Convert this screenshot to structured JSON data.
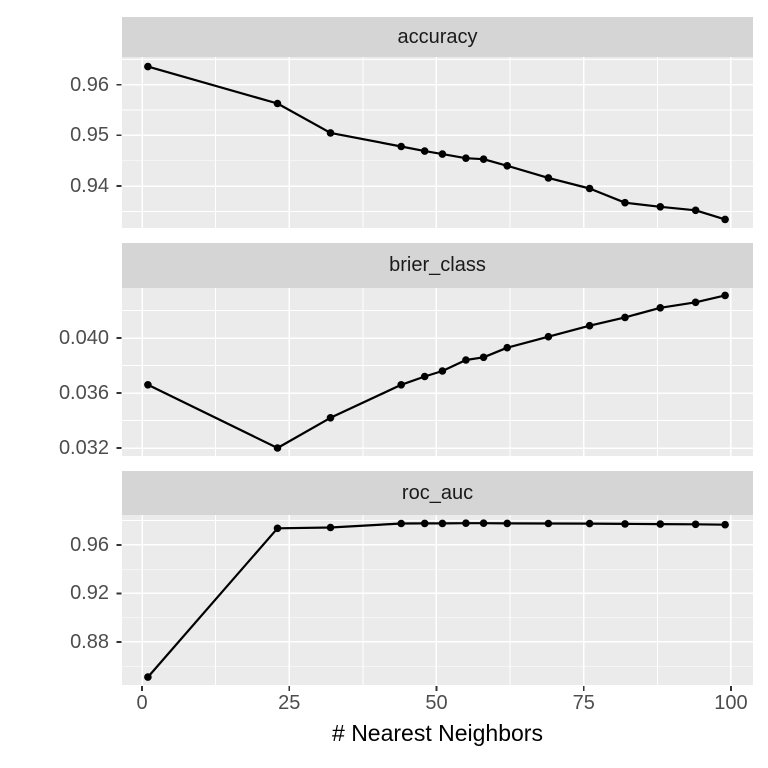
{
  "colors": {
    "strip_bg": "#d5d5d5",
    "strip_text": "#1a1a1a",
    "panel_bg": "#ebebeb",
    "grid": "#ffffff",
    "line": "#000000",
    "point": "#000000",
    "axis_text": "#4d4d4d",
    "tick_mark": "#333333"
  },
  "chart_data": {
    "type": "line",
    "title": "",
    "xlabel": "# Nearest Neighbors",
    "ylabel": "",
    "legend": "none",
    "grid": true,
    "x": [
      1,
      23,
      32,
      44,
      48,
      51,
      55,
      58,
      62,
      69,
      76,
      82,
      88,
      94,
      99
    ],
    "x_ticks": [
      0,
      25,
      50,
      75,
      100
    ],
    "x_tick_labels": [
      "0",
      "25",
      "50",
      "75",
      "100"
    ],
    "x_minor_ticks": [
      12.5,
      37.5,
      62.5,
      87.5
    ],
    "xlim": [
      -3.4,
      103.74
    ],
    "facets": [
      {
        "label": "accuracy",
        "values": [
          0.9636,
          0.9563,
          0.9505,
          0.9478,
          0.9469,
          0.9463,
          0.9455,
          0.9453,
          0.944,
          0.9416,
          0.9395,
          0.9367,
          0.9359,
          0.9352,
          0.9334
        ],
        "y_ticks": [
          0.96,
          0.95,
          0.94
        ],
        "y_tick_labels": [
          "0.96",
          "0.95",
          "0.94"
        ],
        "y_minor_ticks": [
          0.965,
          0.955,
          0.945,
          0.935
        ],
        "ylim": [
          0.9317,
          0.9655
        ]
      },
      {
        "label": "brier_class",
        "values": [
          0.0366,
          0.032,
          0.0342,
          0.0366,
          0.0372,
          0.0376,
          0.0384,
          0.0386,
          0.0393,
          0.0401,
          0.0409,
          0.0415,
          0.0422,
          0.0426,
          0.0431
        ],
        "y_ticks": [
          0.04,
          0.036,
          0.032
        ],
        "y_tick_labels": [
          "0.040",
          "0.036",
          "0.032"
        ],
        "y_minor_ticks": [
          0.042,
          0.038,
          0.034
        ],
        "ylim": [
          0.03142,
          0.04364
        ]
      },
      {
        "label": "roc_auc",
        "values": [
          0.851,
          0.9737,
          0.9744,
          0.9777,
          0.9778,
          0.9778,
          0.9779,
          0.9779,
          0.9778,
          0.9777,
          0.9776,
          0.9774,
          0.9772,
          0.977,
          0.9767
        ],
        "y_ticks": [
          0.96,
          0.92,
          0.88
        ],
        "y_tick_labels": [
          "0.96",
          "0.92",
          "0.88"
        ],
        "y_minor_ticks": [
          0.98,
          0.94,
          0.9,
          0.86
        ],
        "ylim": [
          0.8445,
          0.9847
        ]
      }
    ]
  }
}
